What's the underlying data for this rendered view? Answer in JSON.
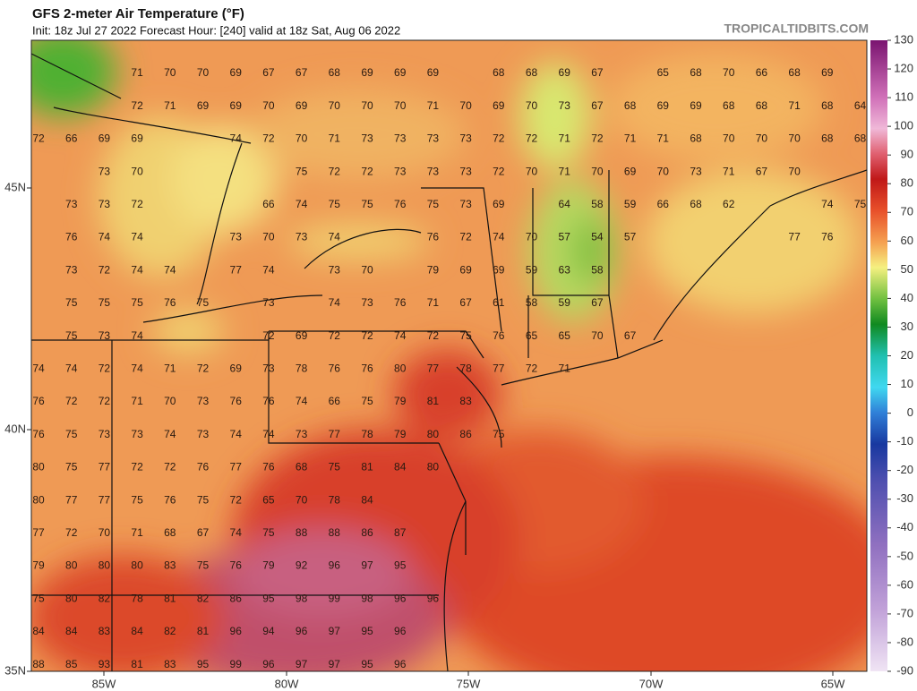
{
  "header": {
    "title": "GFS 2-meter Air Temperature (°F)",
    "subtitle": "Init: 18z Jul 27 2022   Forecast Hour: [240]   valid at 18z Sat, Aug 06 2022",
    "site": "TROPICALTIDBITS.COM"
  },
  "map": {
    "lat_labels": [
      "45N",
      "40N",
      "35N"
    ],
    "lon_labels": [
      "85W",
      "80W",
      "75W",
      "70W",
      "65W"
    ],
    "rows": [
      [
        null,
        null,
        null,
        71,
        70,
        70,
        69,
        67,
        67,
        68,
        69,
        69,
        69,
        null,
        68,
        68,
        69,
        67,
        null,
        65,
        68,
        70,
        66,
        68,
        69
      ],
      [
        null,
        null,
        null,
        72,
        71,
        69,
        69,
        70,
        69,
        70,
        70,
        70,
        71,
        70,
        69,
        70,
        73,
        67,
        68,
        69,
        69,
        68,
        68,
        71,
        68,
        64
      ],
      [
        72,
        66,
        69,
        69,
        null,
        null,
        74,
        72,
        70,
        71,
        73,
        73,
        73,
        73,
        72,
        72,
        71,
        72,
        71,
        71,
        68,
        70,
        70,
        70,
        68,
        68
      ],
      [
        null,
        null,
        73,
        70,
        null,
        null,
        null,
        null,
        75,
        72,
        72,
        73,
        73,
        73,
        72,
        70,
        71,
        70,
        69,
        70,
        73,
        71,
        67,
        70
      ],
      [
        null,
        73,
        73,
        72,
        null,
        null,
        null,
        66,
        74,
        75,
        75,
        76,
        75,
        73,
        69,
        null,
        64,
        58,
        59,
        66,
        68,
        62,
        null,
        null,
        74,
        75
      ],
      [
        null,
        76,
        74,
        74,
        null,
        null,
        73,
        70,
        73,
        74,
        null,
        null,
        76,
        72,
        74,
        70,
        57,
        54,
        57,
        null,
        null,
        null,
        null,
        77,
        76
      ],
      [
        null,
        73,
        72,
        74,
        74,
        null,
        77,
        74,
        null,
        73,
        70,
        null,
        79,
        69,
        69,
        59,
        63,
        58
      ],
      [
        null,
        75,
        75,
        75,
        76,
        75,
        null,
        73,
        null,
        74,
        73,
        76,
        71,
        67,
        61,
        58,
        59,
        67
      ],
      [
        null,
        75,
        73,
        74,
        null,
        null,
        null,
        72,
        69,
        72,
        72,
        74,
        72,
        75,
        76,
        65,
        65,
        70,
        67
      ],
      [
        74,
        74,
        72,
        74,
        71,
        72,
        69,
        73,
        78,
        76,
        76,
        80,
        77,
        78,
        77,
        72,
        71
      ],
      [
        76,
        72,
        72,
        71,
        70,
        73,
        76,
        76,
        74,
        66,
        75,
        79,
        81,
        83
      ],
      [
        76,
        75,
        73,
        73,
        74,
        73,
        74,
        74,
        73,
        77,
        78,
        79,
        80,
        86,
        75
      ],
      [
        80,
        75,
        77,
        72,
        72,
        76,
        77,
        76,
        68,
        75,
        81,
        84,
        80
      ],
      [
        80,
        77,
        77,
        75,
        76,
        75,
        72,
        65,
        70,
        78,
        84
      ],
      [
        77,
        72,
        70,
        71,
        68,
        67,
        74,
        75,
        88,
        88,
        86,
        87
      ],
      [
        79,
        80,
        80,
        80,
        83,
        75,
        76,
        79,
        92,
        96,
        97,
        95
      ],
      [
        75,
        80,
        82,
        78,
        81,
        82,
        86,
        95,
        98,
        99,
        98,
        96,
        96
      ],
      [
        84,
        84,
        83,
        84,
        82,
        81,
        96,
        94,
        96,
        97,
        95,
        96
      ],
      [
        88,
        85,
        93,
        81,
        83,
        95,
        99,
        96,
        97,
        97,
        95,
        96
      ]
    ]
  },
  "colorbar": {
    "ticks": [
      130,
      120,
      110,
      100,
      90,
      80,
      70,
      60,
      50,
      40,
      30,
      20,
      10,
      0,
      -10,
      -20,
      -30,
      -40,
      -50,
      -60,
      -70,
      -80,
      -90
    ]
  }
}
